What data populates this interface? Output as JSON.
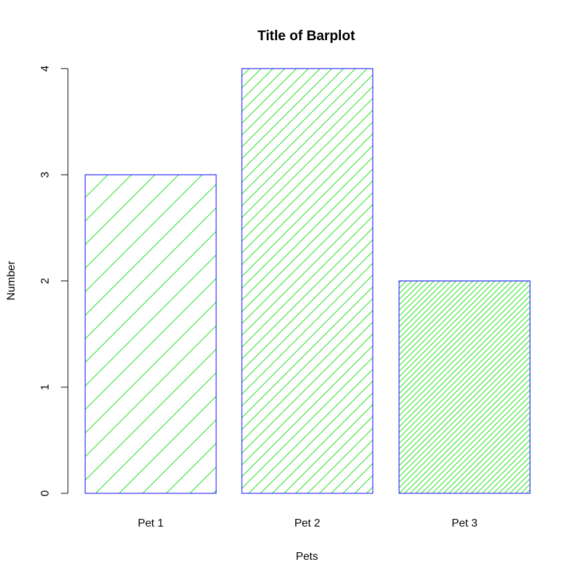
{
  "chart_data": {
    "type": "bar",
    "title": "Title of Barplot",
    "xlabel": "Pets",
    "ylabel": "Number",
    "categories": [
      "Pet 1",
      "Pet 2",
      "Pet 3"
    ],
    "values": [
      3,
      4,
      2
    ],
    "ylim": [
      0,
      4
    ],
    "yticks": [
      0,
      1,
      2,
      3,
      4
    ],
    "ytick_labels": [
      "0",
      "1",
      "2",
      "3",
      "4"
    ],
    "grid": false,
    "bar_border_color": "#0000ff",
    "hatch_color": "#00dd00",
    "hatch_style": [
      "sparse diagonal",
      "medium diagonal",
      "dense diagonal"
    ]
  }
}
